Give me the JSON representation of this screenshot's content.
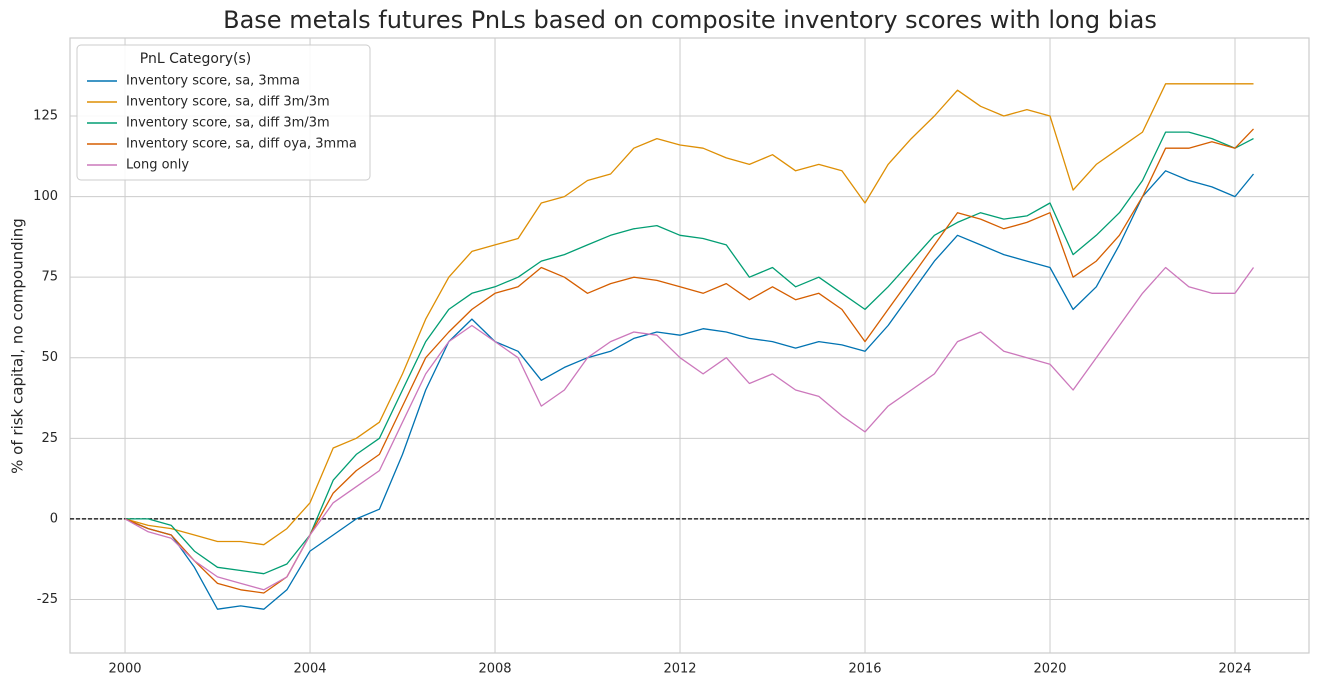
{
  "chart_data": {
    "type": "line",
    "title": "Base metals futures PnLs based on composite inventory scores with long bias",
    "ylabel": "% of risk capital, no compounding",
    "legend_title": "PnL Category(s)",
    "legend_position": "upper left",
    "grid": true,
    "xlim": [
      1998.81,
      2025.6
    ],
    "ylim": [
      -41.6,
      149.2
    ],
    "xticks": [
      2000,
      2004,
      2008,
      2012,
      2016,
      2020,
      2024
    ],
    "yticks": [
      -25,
      0,
      25,
      50,
      75,
      100,
      125
    ],
    "x": [
      2000,
      2000.5,
      2001,
      2001.5,
      2002,
      2002.5,
      2003,
      2003.5,
      2004,
      2004.5,
      2005,
      2005.5,
      2006,
      2006.5,
      2007,
      2007.5,
      2008,
      2008.5,
      2009,
      2009.5,
      2010,
      2010.5,
      2011,
      2011.5,
      2012,
      2012.5,
      2013,
      2013.5,
      2014,
      2014.5,
      2015,
      2015.5,
      2016,
      2016.5,
      2017,
      2017.5,
      2018,
      2018.5,
      2019,
      2019.5,
      2020,
      2020.5,
      2021,
      2021.5,
      2022,
      2022.5,
      2023,
      2023.5,
      2024,
      2024.4
    ],
    "series": [
      {
        "name": "Inventory score, sa, 3mma",
        "color": "#0173b2",
        "values": [
          0,
          -3,
          -5,
          -15,
          -28,
          -27,
          -28,
          -22,
          -10,
          -5,
          0,
          3,
          20,
          40,
          55,
          62,
          55,
          52,
          43,
          47,
          50,
          52,
          56,
          58,
          57,
          59,
          58,
          56,
          55,
          53,
          55,
          54,
          52,
          60,
          70,
          80,
          88,
          85,
          82,
          80,
          78,
          65,
          72,
          85,
          100,
          108,
          105,
          103,
          100,
          107
        ]
      },
      {
        "name": "Inventory score, sa, diff 3m/3m",
        "color": "#de8f05",
        "values": [
          0,
          -2,
          -3,
          -5,
          -7,
          -7,
          -8,
          -3,
          5,
          22,
          25,
          30,
          45,
          62,
          75,
          83,
          85,
          87,
          98,
          100,
          105,
          107,
          115,
          118,
          116,
          115,
          112,
          110,
          113,
          108,
          110,
          108,
          98,
          110,
          118,
          125,
          133,
          128,
          125,
          127,
          125,
          102,
          110,
          115,
          120,
          135,
          135,
          135,
          135,
          135
        ]
      },
      {
        "name": "Inventory score, sa, diff 3m/3m",
        "color": "#029e73",
        "values": [
          0,
          0,
          -2,
          -10,
          -15,
          -16,
          -17,
          -14,
          -5,
          12,
          20,
          25,
          40,
          55,
          65,
          70,
          72,
          75,
          80,
          82,
          85,
          88,
          90,
          91,
          88,
          87,
          85,
          75,
          78,
          72,
          75,
          70,
          65,
          72,
          80,
          88,
          92,
          95,
          93,
          94,
          98,
          82,
          88,
          95,
          105,
          120,
          120,
          118,
          115,
          118
        ]
      },
      {
        "name": "Inventory score, sa, diff oya, 3mma",
        "color": "#d55e00",
        "values": [
          0,
          -3,
          -5,
          -13,
          -20,
          -22,
          -23,
          -18,
          -5,
          8,
          15,
          20,
          35,
          50,
          58,
          65,
          70,
          72,
          78,
          75,
          70,
          73,
          75,
          74,
          72,
          70,
          73,
          68,
          72,
          68,
          70,
          65,
          55,
          65,
          75,
          85,
          95,
          93,
          90,
          92,
          95,
          75,
          80,
          88,
          100,
          115,
          115,
          117,
          115,
          121
        ]
      },
      {
        "name": "Long only",
        "color": "#cc78bc",
        "values": [
          0,
          -4,
          -6,
          -13,
          -18,
          -20,
          -22,
          -18,
          -5,
          5,
          10,
          15,
          30,
          45,
          55,
          60,
          55,
          50,
          35,
          40,
          50,
          55,
          58,
          57,
          50,
          45,
          50,
          42,
          45,
          40,
          38,
          32,
          27,
          35,
          40,
          45,
          55,
          58,
          52,
          50,
          48,
          40,
          50,
          60,
          70,
          78,
          72,
          70,
          70,
          78
        ]
      }
    ]
  }
}
